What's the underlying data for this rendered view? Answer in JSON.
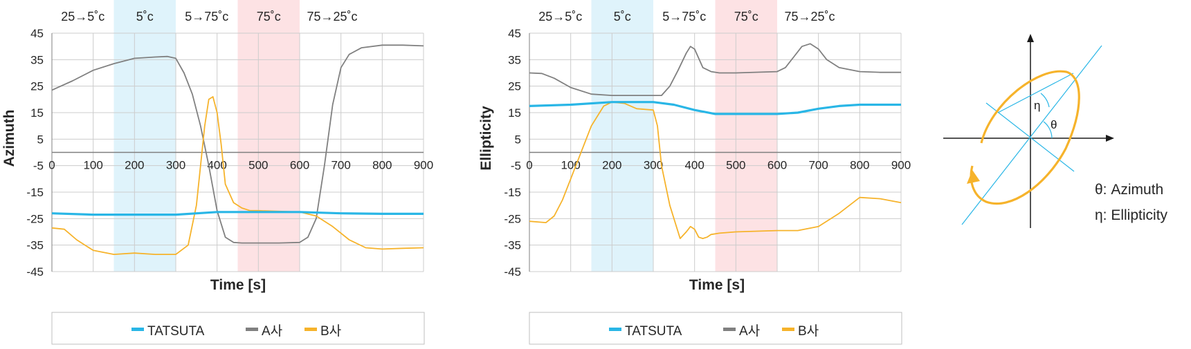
{
  "colors": {
    "tatsuta": "#29b6e6",
    "a_company": "#808080",
    "b_company": "#f6b32b",
    "band_cold": "#dff3fb",
    "band_hot": "#fde2e4",
    "grid": "#cccccc",
    "axis": "#7f7f7f",
    "text": "#262626"
  },
  "chart_data": [
    {
      "type": "line",
      "title": "",
      "xlabel": "Time [s]",
      "ylabel": "Azimuth",
      "xlim": [
        0,
        900
      ],
      "ylim": [
        -45,
        45
      ],
      "xticks": [
        "0",
        "100",
        "200",
        "300",
        "400",
        "500",
        "600",
        "700",
        "800",
        "900"
      ],
      "yticks": [
        "45",
        "35",
        "25",
        "15",
        "5",
        "-5",
        "-15",
        "-25",
        "-35",
        "-45"
      ],
      "grid": true,
      "phases": [
        {
          "label": "25→5˚c",
          "start": 0,
          "end": 150,
          "band": "none"
        },
        {
          "label": "5˚c",
          "start": 150,
          "end": 300,
          "band": "cold"
        },
        {
          "label": "5→75˚c",
          "start": 300,
          "end": 450,
          "band": "none"
        },
        {
          "label": "75˚c",
          "start": 450,
          "end": 600,
          "band": "hot"
        },
        {
          "label": "75→25˚c",
          "start": 600,
          "end": 900,
          "band": "none"
        }
      ],
      "legend": {
        "position": "bottom",
        "entries": [
          "TATSUTA",
          "A사",
          "B사"
        ]
      },
      "series": [
        {
          "name": "TATSUTA",
          "color_key": "tatsuta",
          "x": [
            0,
            100,
            200,
            300,
            400,
            500,
            600,
            700,
            800,
            900
          ],
          "y": [
            -23,
            -23.5,
            -23.5,
            -23.5,
            -22.5,
            -22.5,
            -22.5,
            -23,
            -23.2,
            -23.2
          ]
        },
        {
          "name": "A사",
          "color_key": "a_company",
          "x": [
            0,
            50,
            100,
            150,
            200,
            250,
            280,
            300,
            320,
            340,
            360,
            380,
            400,
            420,
            440,
            460,
            500,
            550,
            600,
            620,
            640,
            660,
            680,
            700,
            720,
            750,
            800,
            850,
            900
          ],
          "y": [
            23.5,
            27,
            31,
            33.5,
            35.5,
            36,
            36.2,
            35.5,
            30,
            22,
            10,
            -5,
            -22,
            -32,
            -34,
            -34.2,
            -34.2,
            -34.2,
            -34,
            -32,
            -25,
            -5,
            18,
            32,
            37,
            39.5,
            40.5,
            40.5,
            40.2
          ]
        },
        {
          "name": "B사",
          "color_key": "b_company",
          "x": [
            0,
            30,
            60,
            100,
            150,
            200,
            250,
            300,
            330,
            350,
            360,
            370,
            380,
            390,
            400,
            410,
            420,
            440,
            460,
            480,
            500,
            600,
            640,
            680,
            720,
            760,
            800,
            850,
            900
          ],
          "y": [
            -28.5,
            -29,
            -33,
            -37,
            -38.5,
            -38,
            -38.5,
            -38.5,
            -35,
            -20,
            -5,
            10,
            20,
            21,
            15,
            3,
            -12,
            -19,
            -21,
            -22,
            -22,
            -22.5,
            -24,
            -28,
            -33,
            -36,
            -36.5,
            -36.2,
            -36
          ]
        }
      ]
    },
    {
      "type": "line",
      "title": "",
      "xlabel": "Time [s]",
      "ylabel": "Ellipticity",
      "xlim": [
        0,
        900
      ],
      "ylim": [
        -45,
        45
      ],
      "xticks": [
        "0",
        "100",
        "200",
        "300",
        "400",
        "500",
        "600",
        "700",
        "800",
        "900"
      ],
      "yticks": [
        "45",
        "35",
        "25",
        "15",
        "5",
        "-5",
        "-15",
        "-25",
        "-35",
        "-45"
      ],
      "grid": true,
      "phases": [
        {
          "label": "25→5˚c",
          "start": 0,
          "end": 150,
          "band": "none"
        },
        {
          "label": "5˚c",
          "start": 150,
          "end": 300,
          "band": "cold"
        },
        {
          "label": "5→75˚c",
          "start": 300,
          "end": 450,
          "band": "none"
        },
        {
          "label": "75˚c",
          "start": 450,
          "end": 600,
          "band": "hot"
        },
        {
          "label": "75→25˚c",
          "start": 600,
          "end": 900,
          "band": "none"
        }
      ],
      "legend": {
        "position": "bottom",
        "entries": [
          "TATSUTA",
          "A사",
          "B사"
        ]
      },
      "series": [
        {
          "name": "TATSUTA",
          "color_key": "tatsuta",
          "x": [
            0,
            100,
            200,
            300,
            350,
            400,
            450,
            500,
            600,
            650,
            700,
            750,
            800,
            850,
            900
          ],
          "y": [
            17.5,
            18,
            19,
            19,
            18,
            16,
            14.5,
            14.5,
            14.5,
            15,
            16.5,
            17.5,
            18,
            18,
            18
          ]
        },
        {
          "name": "A사",
          "color_key": "a_company",
          "x": [
            0,
            30,
            60,
            100,
            150,
            200,
            250,
            300,
            320,
            340,
            360,
            380,
            390,
            400,
            420,
            440,
            460,
            500,
            600,
            620,
            640,
            660,
            680,
            700,
            720,
            750,
            800,
            850,
            900
          ],
          "y": [
            30,
            29.8,
            28,
            24.5,
            22,
            21.5,
            21.5,
            21.5,
            21.5,
            25,
            31,
            37.5,
            40,
            39,
            32,
            30.5,
            30,
            30,
            30.5,
            32,
            36,
            40,
            41,
            39,
            35,
            32,
            30.5,
            30.2,
            30.2
          ]
        },
        {
          "name": "B사",
          "color_key": "b_company",
          "x": [
            0,
            40,
            60,
            80,
            100,
            120,
            150,
            180,
            200,
            230,
            260,
            300,
            310,
            320,
            340,
            360,
            365,
            380,
            390,
            400,
            410,
            420,
            430,
            440,
            460,
            500,
            600,
            650,
            700,
            750,
            800,
            850,
            900
          ],
          "y": [
            -26,
            -26.5,
            -24,
            -18,
            -10,
            -2,
            10,
            17.5,
            19,
            18.5,
            16.5,
            16,
            10,
            -5,
            -20,
            -30,
            -32.5,
            -30,
            -28,
            -29,
            -32,
            -32.5,
            -32,
            -31,
            -30.5,
            -30,
            -29.5,
            -29.5,
            -28,
            -23,
            -17,
            -17.5,
            -19
          ]
        }
      ]
    }
  ],
  "diagram": {
    "theta_symbol": "θ",
    "eta_symbol": "η",
    "labels": [
      {
        "symbol": "θ",
        "text": "θ: Azimuth"
      },
      {
        "symbol": "η",
        "text": "η: Ellipticity"
      }
    ]
  }
}
